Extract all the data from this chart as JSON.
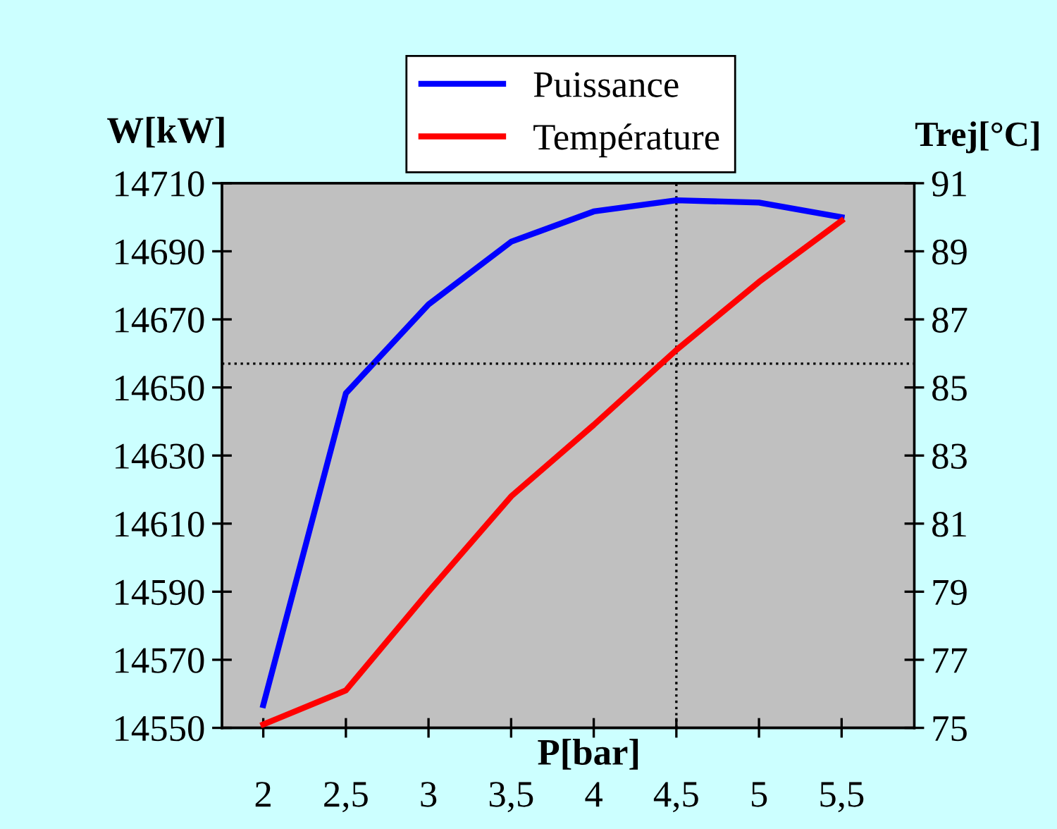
{
  "chart_data": {
    "type": "line",
    "categories": [
      "2",
      "2,5",
      "3",
      "3,5",
      "4",
      "4,5",
      "5",
      "5,5"
    ],
    "xlabel": "P[bar]",
    "ylabel": "W[kW]",
    "y2label": "Trej[°C]",
    "series": [
      {
        "name": "Puissance",
        "color": "#0000ff",
        "values": [
          14556.7,
          14648.3,
          14674.4,
          14692.8,
          14701.7,
          14705,
          14704.3,
          14700
        ]
      },
      {
        "name": "Température",
        "color": "#ff0000",
        "axis": "y2",
        "values": [
          75.1,
          76.1,
          79.0,
          81.8,
          83.9,
          86.1,
          88.1,
          89.9
        ]
      }
    ],
    "ylim": [
      14550,
      14710
    ],
    "yticks": [
      14550,
      14570,
      14590,
      14610,
      14630,
      14650,
      14670,
      14690,
      14710
    ],
    "y2lim": [
      75,
      91
    ],
    "y2ticks": [
      75,
      77,
      79,
      81,
      83,
      85,
      87,
      89,
      91
    ],
    "ref_lines": [
      {
        "axis": "x",
        "value": "4,5",
        "color": "#000000",
        "line_style": "dotted"
      },
      {
        "axis": "y2",
        "value": 85.7,
        "color": "#000000",
        "line_style": "dotted"
      }
    ],
    "grid": false,
    "legend": "top",
    "marker": "none",
    "line_style": "solid"
  }
}
